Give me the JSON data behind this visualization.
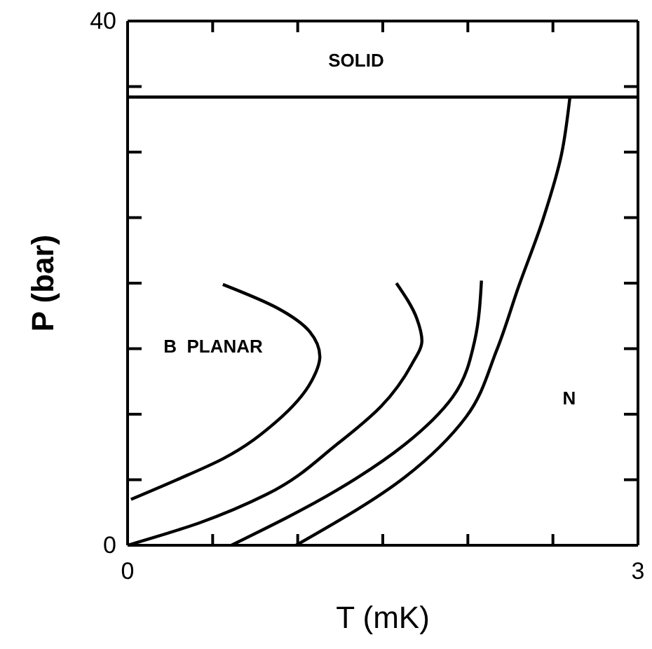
{
  "chart_data": {
    "type": "line",
    "xlabel": "T (mK)",
    "ylabel": "P (bar)",
    "xlim": [
      0,
      3
    ],
    "ylim": [
      0,
      40
    ],
    "xticks": [
      0,
      {
        "value": 0.5,
        "label": null
      },
      {
        "value": 1,
        "label": null
      },
      {
        "value": 1.5,
        "label": null
      },
      {
        "value": 2,
        "label": null
      },
      {
        "value": 2.5,
        "label": null
      },
      3
    ],
    "yticks": [
      0,
      {
        "value": 5,
        "label": null
      },
      {
        "value": 10,
        "label": null
      },
      {
        "value": 15,
        "label": null
      },
      {
        "value": 20,
        "label": null
      },
      {
        "value": 25,
        "label": null
      },
      {
        "value": 30,
        "label": null
      },
      {
        "value": 35,
        "label": null
      },
      40
    ],
    "grid": false,
    "marker": "none",
    "line_style": "solid",
    "series": [
      {
        "color": "#000000",
        "x": [
          0,
          3
        ],
        "values": [
          34.2,
          34.2
        ]
      },
      {
        "color": "#000000",
        "x": [
          0.56,
          0.88,
          1.07,
          1.13,
          1.08,
          0.88,
          0.56,
          0.29,
          0.02
        ],
        "values": [
          19.9,
          18.1,
          16.3,
          14.4,
          12.5,
          9.5,
          6.6,
          5.0,
          3.5
        ]
      },
      {
        "color": "#000000",
        "x": [
          1.58,
          1.7,
          1.73,
          1.67,
          1.49,
          1.23,
          0.82,
          0.42,
          0
        ],
        "values": [
          20.0,
          17.3,
          15.6,
          13.8,
          10.6,
          7.7,
          3.9,
          1.7,
          0
        ]
      },
      {
        "color": "#000000",
        "x": [
          2.08,
          2.04,
          1.91,
          1.63,
          1.23,
          0.61
        ],
        "values": [
          20.2,
          15.6,
          11.3,
          7.7,
          4.2,
          0
        ]
      },
      {
        "color": "#000000",
        "x": [
          2.6,
          2.55,
          2.44,
          2.3,
          2.17,
          1.99,
          1.63,
          0.99
        ],
        "values": [
          34.2,
          29.8,
          24.8,
          19.8,
          14.9,
          9.8,
          5.2,
          0
        ]
      }
    ],
    "annotations": [
      "SOLID",
      "B  PLANAR",
      "N"
    ]
  }
}
